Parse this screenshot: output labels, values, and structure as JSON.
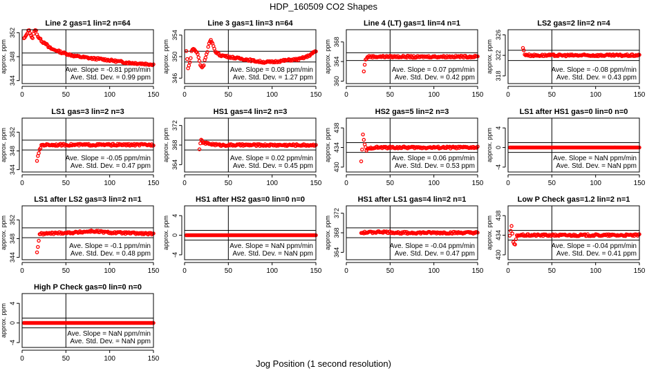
{
  "figure": {
    "title": "HDP_160509  CO2 Shapes",
    "xlabel": "Jog Position (1 second resolution)"
  },
  "chart_data": [
    {
      "type": "scatter",
      "title": "Line 2 gas=1 lin=2 n=64",
      "ylabel": "approx. ppm",
      "xlim": [
        0,
        150
      ],
      "xticks": [
        0,
        50,
        100,
        150
      ],
      "yticks": [
        344,
        348,
        352
      ],
      "ylim": [
        343.5,
        352.5
      ],
      "vline": 50,
      "hlines": [
        348.6,
        346.6
      ],
      "slope_text": "Ave. Slope = -0.81 ppm/min",
      "std_text": "Ave. Std. Dev. = 0.99 ppm",
      "series": [
        {
          "start": 2,
          "end": 150,
          "points": [
            [
              2,
              351.0
            ],
            [
              4,
              351.3
            ],
            [
              6,
              352.0
            ],
            [
              8,
              352.5
            ],
            [
              10,
              351.6
            ],
            [
              12,
              351.0
            ],
            [
              14,
              352.4
            ],
            [
              16,
              352.3
            ],
            [
              18,
              351.4
            ],
            [
              20,
              351.0
            ],
            [
              22,
              350.7
            ],
            [
              24,
              350.4
            ],
            [
              26,
              350.4
            ],
            [
              28,
              350.0
            ],
            [
              30,
              349.6
            ],
            [
              35,
              349.2
            ],
            [
              40,
              349.0
            ],
            [
              45,
              348.7
            ],
            [
              50,
              348.5
            ],
            [
              60,
              348.1
            ],
            [
              70,
              347.9
            ],
            [
              80,
              347.7
            ],
            [
              90,
              347.6
            ],
            [
              100,
              347.4
            ],
            [
              110,
              347.2
            ],
            [
              120,
              347.0
            ],
            [
              130,
              346.9
            ],
            [
              140,
              346.8
            ],
            [
              150,
              346.7
            ]
          ]
        }
      ]
    },
    {
      "type": "scatter",
      "title": "Line 3 gas=1 lin=3 n=64",
      "ylabel": "approx. ppm",
      "xlim": [
        0,
        150
      ],
      "xticks": [
        0,
        50,
        100,
        150
      ],
      "yticks": [
        346,
        350,
        354
      ],
      "ylim": [
        345,
        355
      ],
      "vline": 50,
      "hlines": [
        351.0,
        349.0
      ],
      "slope_text": "Ave. Slope = 0.08 ppm/min",
      "std_text": "Ave. Std. Dev. = 1.27 ppm",
      "series": [
        {
          "start": 2,
          "end": 150,
          "points": [
            [
              2,
              351.0
            ],
            [
              4,
              348.0
            ],
            [
              6,
              348.8
            ],
            [
              8,
              351.0
            ],
            [
              10,
              351.5
            ],
            [
              12,
              351.2
            ],
            [
              15,
              350.5
            ],
            [
              18,
              348.5
            ],
            [
              20,
              348.0
            ],
            [
              22,
              348.5
            ],
            [
              24,
              350.0
            ],
            [
              26,
              351.0
            ],
            [
              28,
              352.5
            ],
            [
              30,
              353.0
            ],
            [
              32,
              352.3
            ],
            [
              35,
              351.0
            ],
            [
              40,
              350.3
            ],
            [
              50,
              350.0
            ],
            [
              60,
              349.7
            ],
            [
              70,
              349.5
            ],
            [
              80,
              349.2
            ],
            [
              90,
              349.0
            ],
            [
              100,
              349.0
            ],
            [
              110,
              349.2
            ],
            [
              120,
              349.4
            ],
            [
              130,
              349.5
            ],
            [
              140,
              350.0
            ],
            [
              150,
              351.0
            ]
          ]
        }
      ]
    },
    {
      "type": "scatter",
      "title": "Line 4 (LT) gas=1 lin=4 n=1",
      "ylabel": "approx. ppm",
      "xlim": [
        0,
        150
      ],
      "xticks": [
        0,
        50,
        100,
        150
      ],
      "yticks": [
        360,
        364,
        368
      ],
      "ylim": [
        359.5,
        370.5
      ],
      "vline": 50,
      "hlines": [
        365.8,
        364.2
      ],
      "slope_text": "Ave. Slope = 0.07 ppm/min",
      "std_text": "Ave. Std. Dev. = 0.42 ppm",
      "series": [
        {
          "start": 20,
          "end": 150,
          "points": [
            [
              20,
              362.0
            ],
            [
              22,
              364.5
            ],
            [
              25,
              365.0
            ],
            [
              35,
              365.0
            ],
            [
              50,
              365.0
            ],
            [
              60,
              365.0
            ],
            [
              70,
              365.0
            ],
            [
              80,
              364.9
            ],
            [
              90,
              365.0
            ],
            [
              100,
              365.0
            ],
            [
              110,
              365.0
            ],
            [
              120,
              365.0
            ],
            [
              130,
              365.0
            ],
            [
              140,
              365.0
            ],
            [
              150,
              365.0
            ]
          ]
        }
      ]
    },
    {
      "type": "scatter",
      "title": "LS2 gas=2 lin=2 n=4",
      "ylabel": "approx. ppm",
      "xlim": [
        0,
        150
      ],
      "xticks": [
        0,
        50,
        100,
        150
      ],
      "yticks": [
        318,
        322,
        326
      ],
      "ylim": [
        316.5,
        327
      ],
      "vline": 50,
      "hlines": [
        323.0,
        321.0
      ],
      "slope_text": "Ave. Slope = -0.08 ppm/min",
      "std_text": "Ave. Std. Dev. = 0.43 ppm",
      "series": [
        {
          "start": 17,
          "end": 150,
          "points": [
            [
              17,
              323.5
            ],
            [
              19,
              322.2
            ],
            [
              25,
              322.0
            ],
            [
              40,
              322.0
            ],
            [
              60,
              322.0
            ],
            [
              80,
              322.0
            ],
            [
              100,
              322.0
            ],
            [
              120,
              322.0
            ],
            [
              150,
              322.0
            ]
          ]
        }
      ]
    },
    {
      "type": "scatter",
      "title": "LS1 gas=3 lin=2 n=3",
      "ylabel": "approx. ppm",
      "xlim": [
        0,
        150
      ],
      "xticks": [
        0,
        50,
        100,
        150
      ],
      "yticks": [
        344,
        348,
        352
      ],
      "ylim": [
        343.5,
        355
      ],
      "vline": 50,
      "hlines": [
        350.3,
        348.2
      ],
      "slope_text": "Ave. Slope = -0.05 ppm/min",
      "std_text": "Ave. Std. Dev. = 0.47 ppm",
      "series": [
        {
          "start": 17,
          "end": 150,
          "points": [
            [
              17,
              346.0
            ],
            [
              19,
              347.5
            ],
            [
              22,
              349.3
            ],
            [
              40,
              349.3
            ],
            [
              60,
              349.3
            ],
            [
              80,
              349.3
            ],
            [
              100,
              349.3
            ],
            [
              120,
              349.3
            ],
            [
              150,
              349.3
            ]
          ]
        }
      ]
    },
    {
      "type": "scatter",
      "title": "HS1 gas=4 lin=2 n=3",
      "ylabel": "approx. ppm",
      "xlim": [
        0,
        150
      ],
      "xticks": [
        0,
        50,
        100,
        150
      ],
      "yticks": [
        364,
        368,
        372
      ],
      "ylim": [
        362.5,
        373.5
      ],
      "vline": 50,
      "hlines": [
        369.0,
        367.0
      ],
      "slope_text": "Ave. Slope = 0.02 ppm/min",
      "std_text": "Ave. Std. Dev. = 0.45 ppm",
      "series": [
        {
          "start": 17,
          "end": 150,
          "points": [
            [
              17,
              367.3
            ],
            [
              19,
              369.0
            ],
            [
              22,
              368.4
            ],
            [
              40,
              368.0
            ],
            [
              60,
              368.0
            ],
            [
              80,
              368.0
            ],
            [
              100,
              368.0
            ],
            [
              120,
              368.0
            ],
            [
              150,
              368.0
            ]
          ]
        }
      ]
    },
    {
      "type": "scatter",
      "title": "HS2 gas=5 lin=2 n=3",
      "ylabel": "approx. ppm",
      "xlim": [
        0,
        150
      ],
      "xticks": [
        0,
        50,
        100,
        150
      ],
      "yticks": [
        430,
        434,
        438
      ],
      "ylim": [
        429,
        440
      ],
      "vline": 50,
      "hlines": [
        435.0,
        433.0
      ],
      "slope_text": "Ave. Slope = 0.06 ppm/min",
      "std_text": "Ave. Std. Dev. = 0.53 ppm",
      "series": [
        {
          "start": 17,
          "end": 150,
          "points": [
            [
              17,
              431.0
            ],
            [
              19,
              436.5
            ],
            [
              21,
              434.5
            ],
            [
              23,
              433.5
            ],
            [
              30,
              434.0
            ],
            [
              50,
              434.0
            ],
            [
              70,
              434.0
            ],
            [
              90,
              434.0
            ],
            [
              110,
              434.0
            ],
            [
              130,
              434.0
            ],
            [
              150,
              434.0
            ]
          ]
        }
      ]
    },
    {
      "type": "scatter",
      "title": "LS1 after HS1 gas=0 lin=0 n=0",
      "ylabel": "approx. ppm",
      "xlim": [
        0,
        150
      ],
      "xticks": [
        0,
        50,
        100,
        150
      ],
      "yticks": [
        -4,
        0,
        4
      ],
      "ylim": [
        -5,
        6
      ],
      "vline": 50,
      "hlines": [
        1,
        -1
      ],
      "slope_text": "Ave. Slope =  NaN  ppm/min",
      "std_text": "Ave. Std. Dev. =  NaN  ppm",
      "series": [
        {
          "start": 2,
          "end": 150,
          "points": [
            [
              2,
              0
            ],
            [
              150,
              0
            ]
          ]
        }
      ]
    },
    {
      "type": "scatter",
      "title": "LS1 after LS2 gas=3 lin=2 n=1",
      "ylabel": "approx. ppm",
      "xlim": [
        0,
        150
      ],
      "xticks": [
        0,
        50,
        100,
        150
      ],
      "yticks": [
        344,
        348,
        352
      ],
      "ylim": [
        343.5,
        355
      ],
      "vline": 50,
      "hlines": [
        350.3,
        348.2
      ],
      "slope_text": "Ave. Slope = -0.1 ppm/min",
      "std_text": "Ave. Std. Dev. = 0.48 ppm",
      "series": [
        {
          "start": 17,
          "end": 150,
          "points": [
            [
              17,
              345.0
            ],
            [
              20,
              349.0
            ],
            [
              40,
              349.2
            ],
            [
              60,
              349.3
            ],
            [
              80,
              349.6
            ],
            [
              100,
              349.3
            ],
            [
              120,
              349.2
            ],
            [
              150,
              349.0
            ]
          ]
        }
      ]
    },
    {
      "type": "scatter",
      "title": "HS1 after HS2 gas=0 lin=0 n=0",
      "ylabel": "approx. ppm",
      "xlim": [
        0,
        150
      ],
      "xticks": [
        0,
        50,
        100,
        150
      ],
      "yticks": [
        -4,
        0,
        4
      ],
      "ylim": [
        -5,
        6
      ],
      "vline": 50,
      "hlines": [
        1,
        -1
      ],
      "slope_text": "Ave. Slope =  NaN  ppm/min",
      "std_text": "Ave. Std. Dev. =  NaN  ppm",
      "series": [
        {
          "start": 2,
          "end": 150,
          "points": [
            [
              2,
              0
            ],
            [
              150,
              0
            ]
          ]
        }
      ]
    },
    {
      "type": "scatter",
      "title": "HS1 after LS1 gas=4 lin=2 n=1",
      "ylabel": "approx. ppm",
      "xlim": [
        0,
        150
      ],
      "xticks": [
        0,
        50,
        100,
        150
      ],
      "yticks": [
        364,
        368,
        372
      ],
      "ylim": [
        362.5,
        373.5
      ],
      "vline": 50,
      "hlines": [
        369.0,
        367.0
      ],
      "slope_text": "Ave. Slope = -0.04 ppm/min",
      "std_text": "Ave. Std. Dev. = 0.47 ppm",
      "series": [
        {
          "start": 17,
          "end": 150,
          "points": [
            [
              17,
              368.0
            ],
            [
              40,
              368.2
            ],
            [
              60,
              368.0
            ],
            [
              80,
              368.0
            ],
            [
              100,
              368.0
            ],
            [
              120,
              368.0
            ],
            [
              150,
              368.0
            ]
          ]
        }
      ]
    },
    {
      "type": "scatter",
      "title": "Low P Check gas=1.2 lin=2 n=1",
      "ylabel": "approx. ppm",
      "xlim": [
        0,
        150
      ],
      "xticks": [
        0,
        50,
        100,
        150
      ],
      "yticks": [
        430,
        434,
        438
      ],
      "ylim": [
        429,
        440
      ],
      "vline": 50,
      "hlines": [
        435.0,
        433.0
      ],
      "slope_text": "Ave. Slope = -0.04 ppm/min",
      "std_text": "Ave. Std. Dev. = 0.41 ppm",
      "series": [
        {
          "start": 2,
          "end": 150,
          "points": [
            [
              2,
              434.0
            ],
            [
              4,
              435.8
            ],
            [
              6,
              432.5
            ],
            [
              8,
              432.0
            ],
            [
              10,
              434.0
            ],
            [
              20,
              434.0
            ],
            [
              50,
              434.0
            ],
            [
              80,
              434.0
            ],
            [
              110,
              434.0
            ],
            [
              150,
              434.0
            ]
          ]
        }
      ]
    },
    {
      "type": "scatter",
      "title": "High P Check gas=0 lin=0 n=0",
      "ylabel": "approx. ppm",
      "xlim": [
        0,
        150
      ],
      "xticks": [
        0,
        50,
        100,
        150
      ],
      "yticks": [
        -4,
        0,
        4
      ],
      "ylim": [
        -5,
        6
      ],
      "vline": 50,
      "hlines": [
        1,
        -1
      ],
      "slope_text": "Ave. Slope =  NaN  ppm/min",
      "std_text": "Ave. Std. Dev. =  NaN  ppm",
      "series": [
        {
          "start": 2,
          "end": 150,
          "points": [
            [
              2,
              0
            ],
            [
              150,
              0
            ]
          ]
        }
      ]
    }
  ],
  "colors": {
    "marker": "#ff0000",
    "axes": "#000000"
  }
}
